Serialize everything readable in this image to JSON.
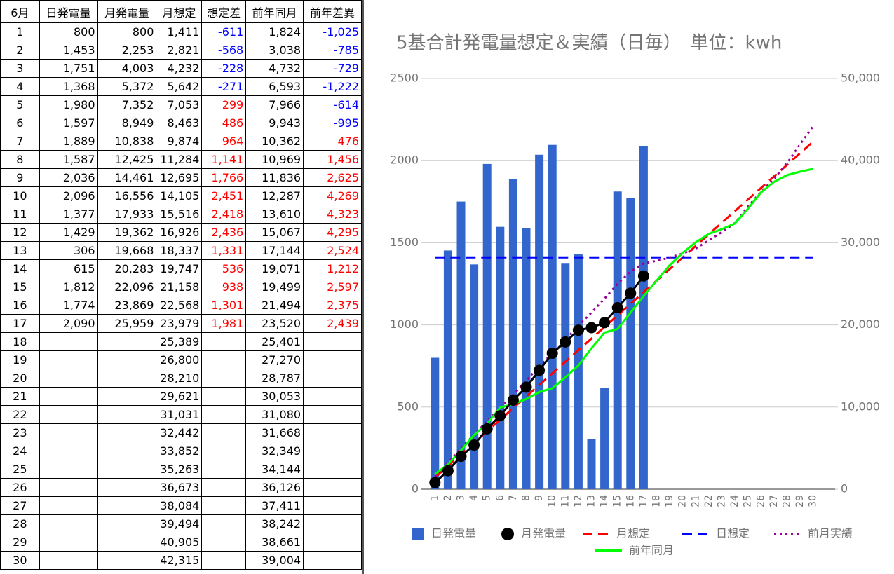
{
  "table": {
    "header": [
      "6月",
      "日発電量",
      "月発電量",
      "月想定",
      "想定差",
      "前年同月",
      "前年差異"
    ],
    "negative_color": "#0000ff",
    "positive_color": "#ff0000",
    "rows": [
      [
        "1",
        "800",
        "800",
        "1,411",
        "-611",
        "1,824",
        "-1,025"
      ],
      [
        "2",
        "1,453",
        "2,253",
        "2,821",
        "-568",
        "3,038",
        "-785"
      ],
      [
        "3",
        "1,751",
        "4,003",
        "4,232",
        "-228",
        "4,732",
        "-729"
      ],
      [
        "4",
        "1,368",
        "5,372",
        "5,642",
        "-271",
        "6,593",
        "-1,222"
      ],
      [
        "5",
        "1,980",
        "7,352",
        "7,053",
        "299",
        "7,966",
        "-614"
      ],
      [
        "6",
        "1,597",
        "8,949",
        "8,463",
        "486",
        "9,943",
        "-995"
      ],
      [
        "7",
        "1,889",
        "10,838",
        "9,874",
        "964",
        "10,362",
        "476"
      ],
      [
        "8",
        "1,587",
        "12,425",
        "11,284",
        "1,141",
        "10,969",
        "1,456"
      ],
      [
        "9",
        "2,036",
        "14,461",
        "12,695",
        "1,766",
        "11,836",
        "2,625"
      ],
      [
        "10",
        "2,096",
        "16,556",
        "14,105",
        "2,451",
        "12,287",
        "4,269"
      ],
      [
        "11",
        "1,377",
        "17,933",
        "15,516",
        "2,418",
        "13,610",
        "4,323"
      ],
      [
        "12",
        "1,429",
        "19,362",
        "16,926",
        "2,436",
        "15,067",
        "4,295"
      ],
      [
        "13",
        "306",
        "19,668",
        "18,337",
        "1,331",
        "17,144",
        "2,524"
      ],
      [
        "14",
        "615",
        "20,283",
        "19,747",
        "536",
        "19,071",
        "1,212"
      ],
      [
        "15",
        "1,812",
        "22,096",
        "21,158",
        "938",
        "19,499",
        "2,597"
      ],
      [
        "16",
        "1,774",
        "23,869",
        "22,568",
        "1,301",
        "21,494",
        "2,375"
      ],
      [
        "17",
        "2,090",
        "25,959",
        "23,979",
        "1,981",
        "23,520",
        "2,439"
      ],
      [
        "18",
        null,
        null,
        "25,389",
        null,
        "25,401",
        null
      ],
      [
        "19",
        null,
        null,
        "26,800",
        null,
        "27,270",
        null
      ],
      [
        "20",
        null,
        null,
        "28,210",
        null,
        "28,787",
        null
      ],
      [
        "21",
        null,
        null,
        "29,621",
        null,
        "30,053",
        null
      ],
      [
        "22",
        null,
        null,
        "31,031",
        null,
        "31,080",
        null
      ],
      [
        "23",
        null,
        null,
        "32,442",
        null,
        "31,668",
        null
      ],
      [
        "24",
        null,
        null,
        "33,852",
        null,
        "32,349",
        null
      ],
      [
        "25",
        null,
        null,
        "35,263",
        null,
        "34,144",
        null
      ],
      [
        "26",
        null,
        null,
        "36,673",
        null,
        "36,126",
        null
      ],
      [
        "27",
        null,
        null,
        "38,084",
        null,
        "37,411",
        null
      ],
      [
        "28",
        null,
        null,
        "39,494",
        null,
        "38,242",
        null
      ],
      [
        "29",
        null,
        null,
        "40,905",
        null,
        "38,661",
        null
      ],
      [
        "30",
        null,
        null,
        "42,315",
        null,
        "39,004",
        null
      ]
    ]
  },
  "chart_data": {
    "type": "combo",
    "title": "5基合計発電量想定＆実績（日毎）　単位：kwh",
    "categories": [
      "1",
      "2",
      "3",
      "4",
      "5",
      "6",
      "7",
      "8",
      "9",
      "10",
      "11",
      "12",
      "13",
      "14",
      "15",
      "16",
      "17",
      "18",
      "19",
      "20",
      "21",
      "22",
      "23",
      "24",
      "25",
      "26",
      "27",
      "28",
      "29",
      "30"
    ],
    "ylim": [
      0,
      2500
    ],
    "yticks": [
      0,
      500,
      1000,
      1500,
      2000,
      2500
    ],
    "y2lim": [
      0,
      50000
    ],
    "y2ticks": [
      0,
      {
        "value": 10000,
        "label": "10,000"
      },
      {
        "value": 20000,
        "label": "20,000"
      },
      {
        "value": 30000,
        "label": "30,000"
      },
      {
        "value": 40000,
        "label": "40,000"
      },
      {
        "value": 50000,
        "label": "50,000"
      }
    ],
    "grid": true,
    "legend": "bottom",
    "series": [
      {
        "name": "日発電量",
        "type": "bar",
        "color": "#3366cc",
        "axis": "y",
        "values": [
          800,
          1453,
          1751,
          1368,
          1980,
          1597,
          1889,
          1587,
          2036,
          2096,
          1377,
          1429,
          306,
          615,
          1812,
          1774,
          2090,
          null,
          null,
          null,
          null,
          null,
          null,
          null,
          null,
          null,
          null,
          null,
          null,
          null
        ]
      },
      {
        "name": "月発電量",
        "type": "line",
        "markers": true,
        "line_style": "solid",
        "color": "#000000",
        "axis": "y2",
        "values": [
          800,
          2253,
          4003,
          5372,
          7352,
          8949,
          10838,
          12425,
          14461,
          16556,
          17933,
          19362,
          19668,
          20283,
          22096,
          23869,
          25959,
          null,
          null,
          null,
          null,
          null,
          null,
          null,
          null,
          null,
          null,
          null,
          null,
          null
        ]
      },
      {
        "name": "月想定",
        "type": "line",
        "line_style": "dashed",
        "color": "#ff0000",
        "axis": "y2",
        "values": [
          1411,
          2821,
          4232,
          5642,
          7053,
          8463,
          9874,
          11284,
          12695,
          14105,
          15516,
          16926,
          18337,
          19747,
          21158,
          22568,
          23979,
          25389,
          26800,
          28210,
          29621,
          31031,
          32442,
          33852,
          35263,
          36673,
          38084,
          39494,
          40905,
          42315
        ]
      },
      {
        "name": "日想定",
        "type": "line",
        "line_style": "dashed",
        "color": "#0000ff",
        "axis": "y",
        "values": [
          1411,
          1411,
          1411,
          1411,
          1411,
          1411,
          1411,
          1411,
          1411,
          1411,
          1411,
          1411,
          1411,
          1411,
          1411,
          1411,
          1411,
          1411,
          1411,
          1411,
          1411,
          1411,
          1411,
          1411,
          1411,
          1411,
          1411,
          1411,
          1411,
          1411
        ]
      },
      {
        "name": "前月実績",
        "type": "line",
        "line_style": "dotted",
        "color": "#990099",
        "axis": "y2",
        "values": [
          1500,
          3200,
          5000,
          6600,
          8300,
          9900,
          11500,
          13200,
          15000,
          16500,
          18200,
          19900,
          21500,
          23200,
          25000,
          26500,
          27500,
          27800,
          28200,
          28700,
          29300,
          30300,
          31300,
          32400,
          34400,
          36200,
          37800,
          39700,
          42000,
          44200
        ]
      },
      {
        "name": "前年同月",
        "type": "line",
        "line_style": "solid",
        "color": "#00ff00",
        "axis": "y2",
        "values": [
          1824,
          3038,
          4732,
          6593,
          7966,
          9943,
          10362,
          10969,
          11836,
          12287,
          13610,
          15067,
          17144,
          19071,
          19499,
          21494,
          23520,
          25401,
          27270,
          28787,
          30053,
          31080,
          31668,
          32349,
          34144,
          36126,
          37411,
          38242,
          38661,
          39004
        ]
      }
    ]
  }
}
